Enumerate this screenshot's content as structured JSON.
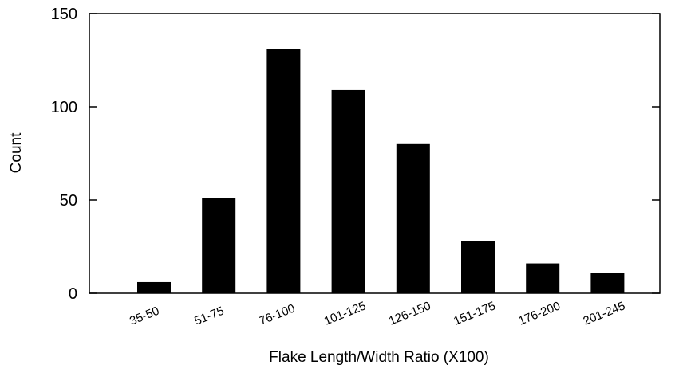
{
  "chart_data": {
    "type": "bar",
    "title": "",
    "xlabel": "Flake Length/Width Ratio (X100)",
    "ylabel": "Count",
    "categories": [
      "35-50",
      "51-75",
      "76-100",
      "101-125",
      "126-150",
      "151-175",
      "176-200",
      "201-245"
    ],
    "values": [
      6,
      51,
      131,
      109,
      80,
      28,
      16,
      11
    ],
    "ylim": [
      0,
      150
    ],
    "yticks": [
      "0",
      "50",
      "100",
      "150"
    ],
    "grid": false,
    "legend": "none",
    "bar_color": "#000000",
    "tick_label_rotation": "angled"
  }
}
